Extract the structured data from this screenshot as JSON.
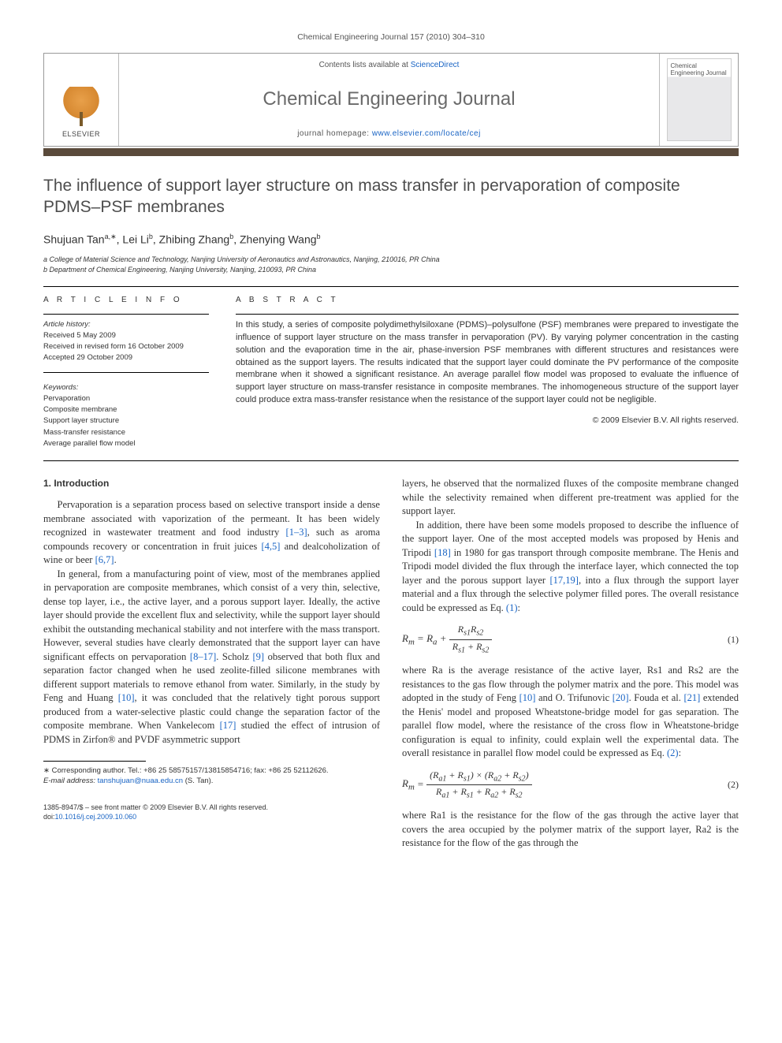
{
  "running_head": "Chemical Engineering Journal 157 (2010) 304–310",
  "header": {
    "publisher": "ELSEVIER",
    "contents_prefix": "Contents lists available at ",
    "contents_link": "ScienceDirect",
    "journal": "Chemical Engineering Journal",
    "homepage_prefix": "journal homepage: ",
    "homepage_url": "www.elsevier.com/locate/cej",
    "cover_text": "Chemical Engineering Journal"
  },
  "title": "The influence of support layer structure on mass transfer in pervaporation of composite PDMS–PSF membranes",
  "authors_html": "Shujuan Tan<sup>a,∗</sup>, Lei Li<sup>b</sup>, Zhibing Zhang<sup>b</sup>, Zhenying Wang<sup>b</sup>",
  "affiliations": [
    "a College of Material Science and Technology, Nanjing University of Aeronautics and Astronautics, Nanjing, 210016, PR China",
    "b Department of Chemical Engineering, Nanjing University, Nanjing, 210093, PR China"
  ],
  "info_head": "A R T I C L E   I N F O",
  "abstract_head": "A B S T R A C T",
  "history": {
    "label": "Article history:",
    "received": "Received 5 May 2009",
    "revised": "Received in revised form 16 October 2009",
    "accepted": "Accepted 29 October 2009"
  },
  "keywords": {
    "label": "Keywords:",
    "items": [
      "Pervaporation",
      "Composite membrane",
      "Support layer structure",
      "Mass-transfer resistance",
      "Average parallel flow model"
    ]
  },
  "abstract": "In this study, a series of composite polydimethylsiloxane (PDMS)–polysulfone (PSF) membranes were prepared to investigate the influence of support layer structure on the mass transfer in pervaporation (PV). By varying polymer concentration in the casting solution and the evaporation time in the air, phase-inversion PSF membranes with different structures and resistances were obtained as the support layers. The results indicated that the support layer could dominate the PV performance of the composite membrane when it showed a significant resistance. An average parallel flow model was proposed to evaluate the influence of support layer structure on mass-transfer resistance in composite membranes. The inhomogeneous structure of the support layer could produce extra mass-transfer resistance when the resistance of the support layer could not be negligible.",
  "copyright": "© 2009 Elsevier B.V. All rights reserved.",
  "section1_head": "1. Introduction",
  "col_left": {
    "p1a": "Pervaporation is a separation process based on selective transport inside a dense membrane associated with vaporization of the permeant. It has been widely recognized in wastewater treatment and food industry ",
    "c1": "[1–3]",
    "p1b": ", such as aroma compounds recovery or concentration in fruit juices ",
    "c2": "[4,5]",
    "p1c": " and dealcoholization of wine or beer ",
    "c3": "[6,7]",
    "p1d": ".",
    "p2a": "In general, from a manufacturing point of view, most of the membranes applied in pervaporation are composite membranes, which consist of a very thin, selective, dense top layer, i.e., the active layer, and a porous support layer. Ideally, the active layer should provide the excellent flux and selectivity, while the support layer should exhibit the outstanding mechanical stability and not interfere with the mass transport. However, several studies have clearly demonstrated that the support layer can have significant effects on pervaporation ",
    "c4": "[8–17]",
    "p2b": ". Scholz ",
    "c5": "[9]",
    "p2c": " observed that both flux and separation factor changed when he used zeolite-filled silicone membranes with different support materials to remove ethanol from water. Similarly, in the study by Feng and Huang ",
    "c6": "[10]",
    "p2d": ", it was concluded that the relatively tight porous support produced from a water-selective plastic could change the separation factor of the composite membrane. When Vankelecom ",
    "c7": "[17]",
    "p2e": " studied the effect of intrusion of PDMS in Zirfon® and PVDF asymmetric support"
  },
  "footnote": {
    "star": "∗ Corresponding author. Tel.: +86 25 58575157/13815854716; fax: +86 25 52112626.",
    "email_label": "E-mail address: ",
    "email": "tanshujuan@nuaa.edu.cn",
    "email_suffix": " (S. Tan)."
  },
  "page_foot": {
    "line1": "1385-8947/$ – see front matter © 2009 Elsevier B.V. All rights reserved.",
    "doi_label": "doi:",
    "doi": "10.1016/j.cej.2009.10.060"
  },
  "col_right": {
    "p1": "layers, he observed that the normalized fluxes of the composite membrane changed while the selectivity remained when different pre-treatment was applied for the support layer.",
    "p2a": "In addition, there have been some models proposed to describe the influence of the support layer. One of the most accepted models was proposed by Henis and Tripodi ",
    "c1": "[18]",
    "p2b": " in 1980 for gas transport through composite membrane. The Henis and Tripodi model divided the flux through the interface layer, which connected the top layer and the porous support layer ",
    "c2": "[17,19]",
    "p2c": ", into a flux through the support layer material and a flux through the selective polymer filled pores. The overall resistance could be expressed as Eq. ",
    "c3": "(1)",
    "p2d": ":",
    "eq1_lhs": "R",
    "eq1_lhs_sub": "m",
    "eq1_eq": " = R",
    "eq1_a_sub": "a",
    "eq1_plus": " + ",
    "eq1_num": "Rs1Rs2",
    "eq1_den": "Rs1 + Rs2",
    "eq1_num_txt": "(1)",
    "p3a": "where Ra is the average resistance of the active layer, Rs1 and Rs2 are the resistances to the gas flow through the polymer matrix and the pore. This model was adopted in the study of Feng ",
    "c4": "[10]",
    "p3b": " and O. Trifunovic ",
    "c5": "[20]",
    "p3c": ". Fouda et al. ",
    "c6": "[21]",
    "p3d": " extended the Henis' model and proposed Wheatstone-bridge model for gas separation. The parallel flow model, where the resistance of the cross flow in Wheatstone-bridge configuration is equal to infinity, could explain well the experimental data. The overall resistance in parallel flow model could be expressed as Eq. ",
    "c7": "(2)",
    "p3e": ":",
    "eq2_num": "(Ra1 + Rs1) × (Ra2 + Rs2)",
    "eq2_den": "Ra1 + Rs1 + Ra2 + Rs2",
    "eq2_num_txt": "(2)",
    "p4": "where Ra1 is the resistance for the flow of the gas through the active layer that covers the area occupied by the polymer matrix of the support layer, Ra2 is the resistance for the flow of the gas through the"
  }
}
